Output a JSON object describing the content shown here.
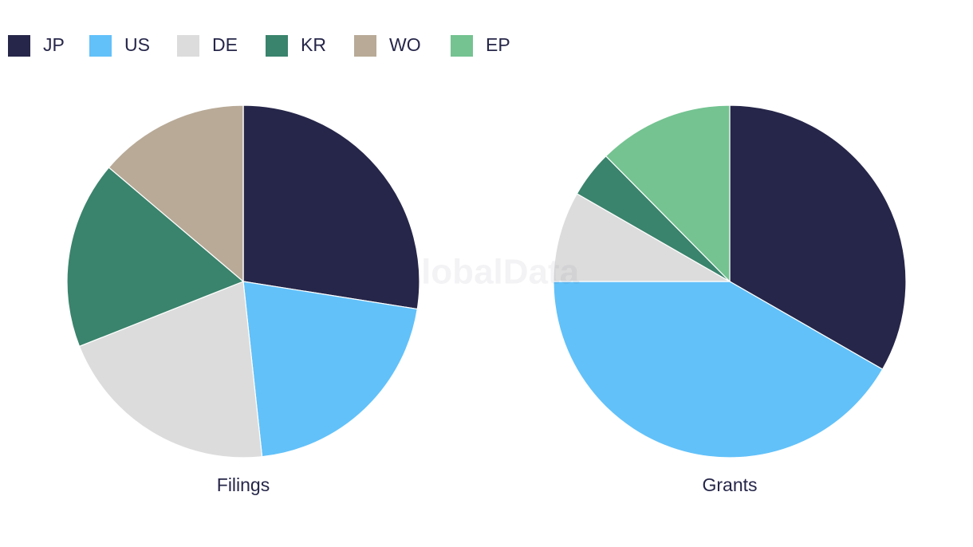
{
  "legend": {
    "categories": [
      "JP",
      "US",
      "DE",
      "KR",
      "WO",
      "EP"
    ],
    "colors": [
      "#26264a",
      "#62c1f9",
      "#dcdcdc",
      "#3a836c",
      "#b8aa97",
      "#74c391"
    ]
  },
  "watermark": "GlobalData",
  "chart_data": [
    {
      "type": "pie",
      "title": "Filings",
      "values": [
        27.5,
        20.8,
        20.7,
        17.2,
        13.8,
        0
      ]
    },
    {
      "type": "pie",
      "title": "Grants",
      "values": [
        33.3,
        41.7,
        8.3,
        4.3,
        0,
        12.4
      ]
    }
  ]
}
